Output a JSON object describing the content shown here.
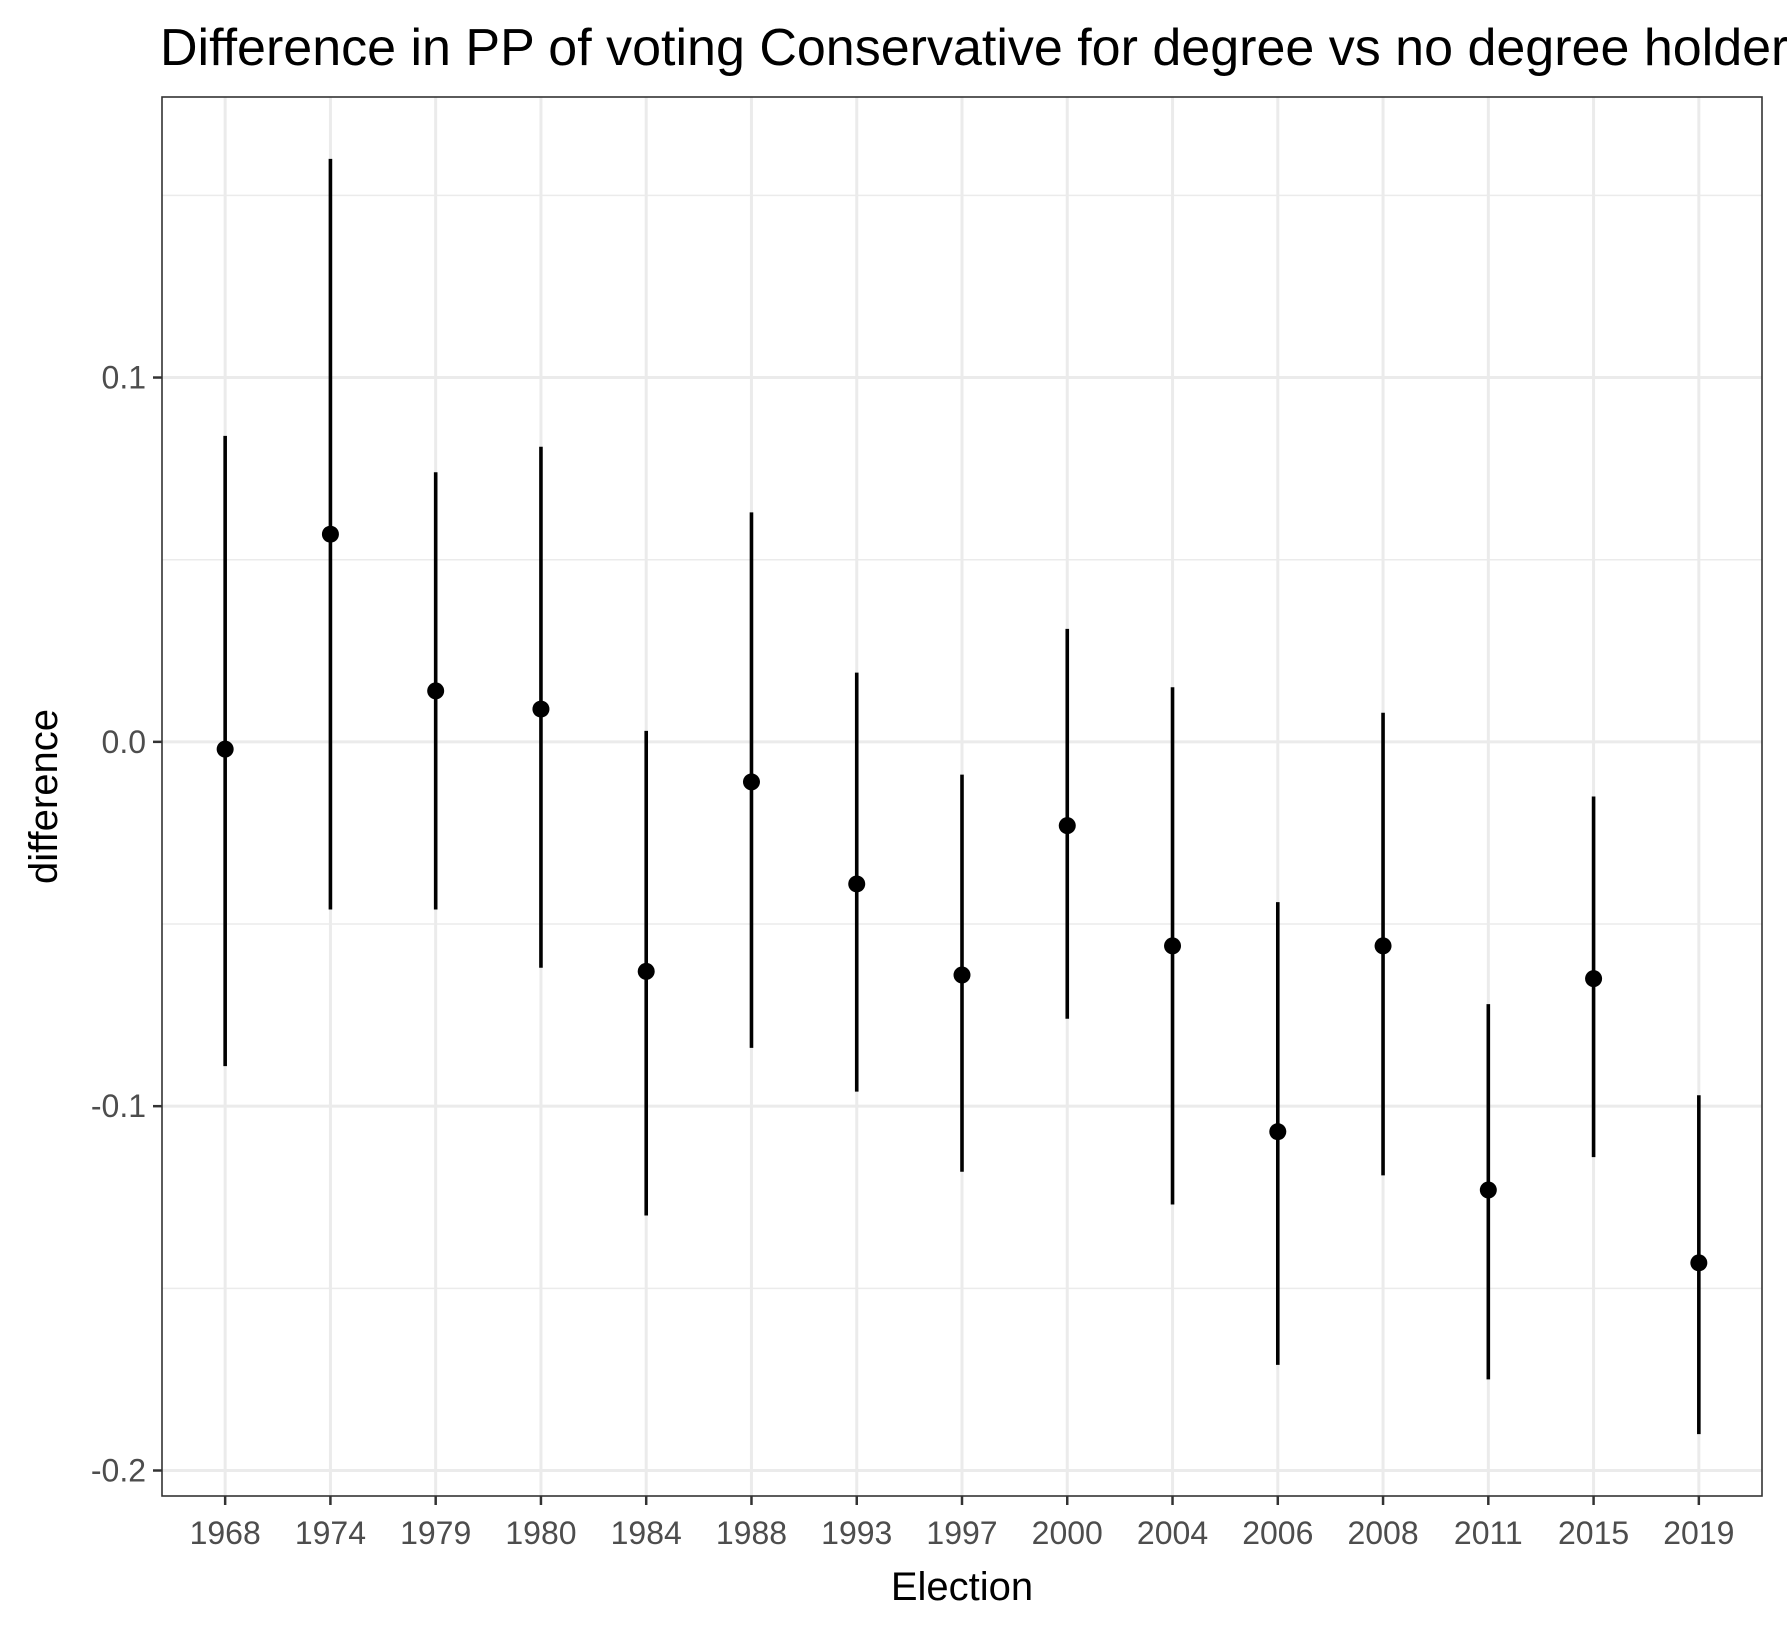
{
  "chart_data": {
    "type": "scatter",
    "title": "Difference in PP of voting Conservative for degree vs no degree holders",
    "xlabel": "Election",
    "ylabel": "difference",
    "categories": [
      "1968",
      "1974",
      "1979",
      "1980",
      "1984",
      "1988",
      "1993",
      "1997",
      "2000",
      "2004",
      "2006",
      "2008",
      "2011",
      "2015",
      "2019"
    ],
    "series": [
      {
        "values": [
          -0.002,
          0.057,
          0.014,
          0.009,
          -0.063,
          -0.011,
          -0.039,
          -0.064,
          -0.023,
          -0.056,
          -0.107,
          -0.056,
          -0.123,
          -0.065,
          -0.143
        ],
        "lower": [
          -0.089,
          -0.046,
          -0.046,
          -0.062,
          -0.13,
          -0.084,
          -0.096,
          -0.118,
          -0.076,
          -0.127,
          -0.171,
          -0.119,
          -0.175,
          -0.114,
          -0.19
        ],
        "upper": [
          0.084,
          0.16,
          0.074,
          0.081,
          0.003,
          0.063,
          0.019,
          -0.009,
          0.031,
          0.015,
          -0.044,
          0.008,
          -0.072,
          -0.015,
          -0.097
        ]
      }
    ],
    "y_ticks": [
      "0.1",
      "0.0",
      "-0.1",
      "-0.2"
    ],
    "y_tick_values": [
      0.1,
      0.0,
      -0.1,
      -0.2
    ],
    "ylim": [
      -0.207,
      0.177
    ],
    "grid": true,
    "theme": "bw",
    "colors": {
      "point": "#000000",
      "grid": "#ebebeb",
      "frame": "#333333"
    }
  }
}
